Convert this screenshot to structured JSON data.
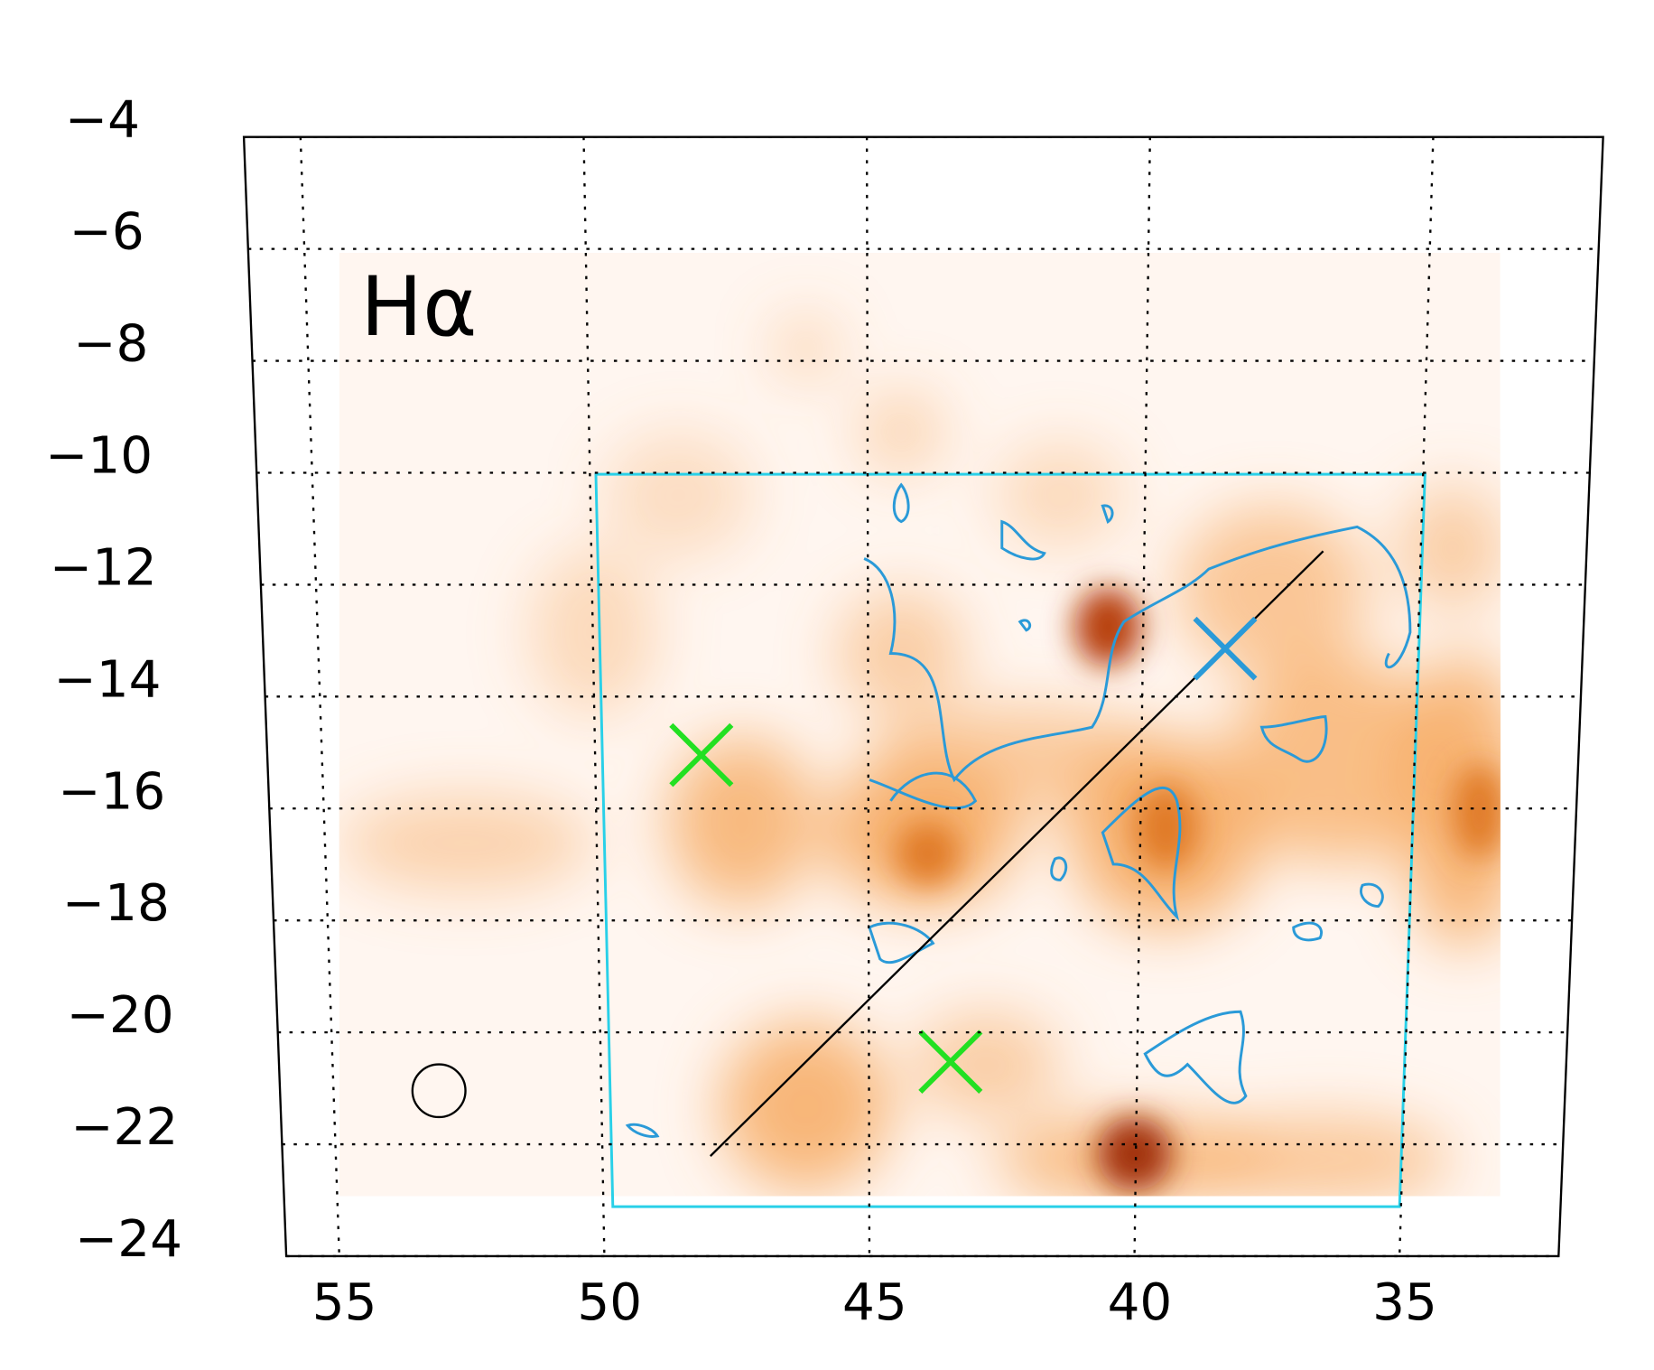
{
  "chart_data": {
    "type": "map",
    "label": "Hα",
    "xlim": [
      56,
      32
    ],
    "ylim": [
      -24,
      -4
    ],
    "xticks": [
      55,
      50,
      45,
      40,
      35
    ],
    "yticks": [
      {
        "value": -4,
        "label": "−4"
      },
      {
        "value": -6,
        "label": "−6"
      },
      {
        "value": -8,
        "label": "−8"
      },
      {
        "value": -10,
        "label": "−10"
      },
      {
        "value": -12,
        "label": "−12"
      },
      {
        "value": -14,
        "label": "−14"
      },
      {
        "value": -16,
        "label": "−16"
      },
      {
        "value": -18,
        "label": "−18"
      },
      {
        "value": -20,
        "label": "−20"
      },
      {
        "value": -22,
        "label": "−22"
      },
      {
        "value": -24,
        "label": "−24"
      }
    ],
    "grid": true
  }
}
